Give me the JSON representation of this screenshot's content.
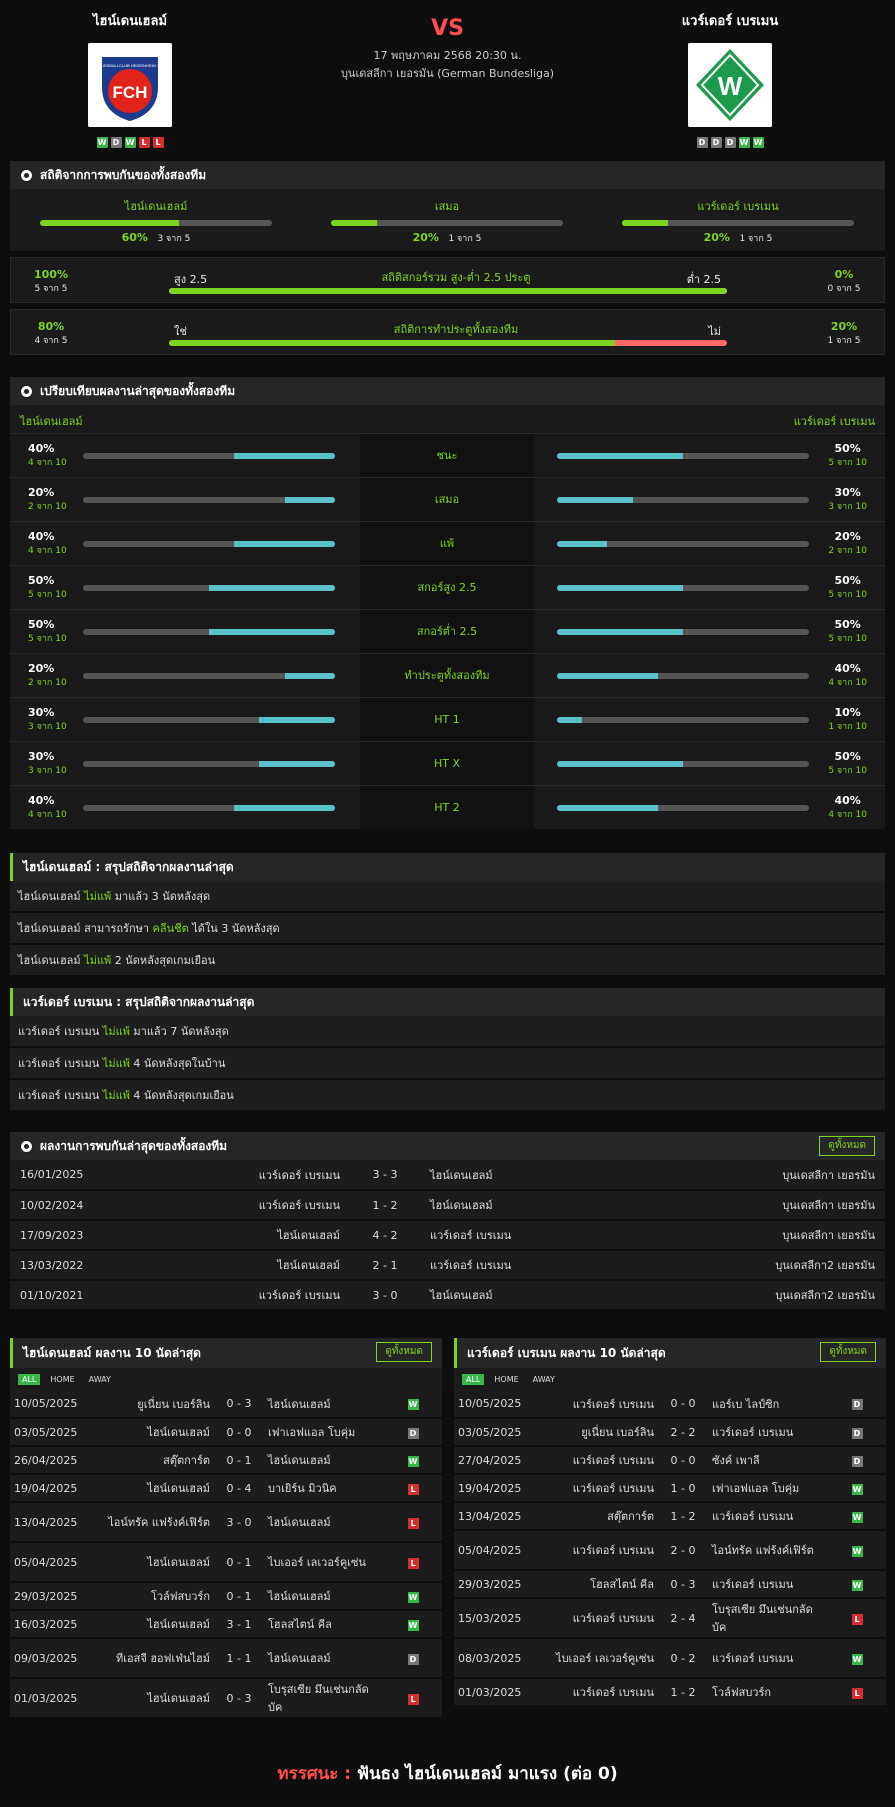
{
  "header": {
    "home_name": "ไฮน์เดนเฮลม์",
    "away_name": "แวร์เดอร์ เบรเมน",
    "vs": "VS",
    "date": "17 พฤษภาคม 2568 20:30 น.",
    "league": "บุนเดสลีกา เยอรมัน (German Bundesliga)",
    "home_form": [
      "W",
      "D",
      "W",
      "L",
      "L"
    ],
    "away_form": [
      "D",
      "D",
      "D",
      "W",
      "W"
    ],
    "home_logo_text": "FCH",
    "home_logo_top": "1. FUSSBALLCLUB HEIDENHEIM 1846",
    "away_logo_text": "W"
  },
  "h2h_stats": {
    "title": "สถิติจากการพบกันของทั้งสองทีม",
    "home": {
      "label": "ไฮน์เดนเฮลม์",
      "pct": "60%",
      "count": "3 จาก 5",
      "value": 60
    },
    "draw": {
      "label": "เสมอ",
      "pct": "20%",
      "count": "1 จาก 5",
      "value": 20
    },
    "away": {
      "label": "แวร์เดอร์ เบรเมน",
      "pct": "20%",
      "count": "1 จาก 5",
      "value": 20
    },
    "ou": {
      "title": "สถิติสกอร์รวม สูง-ต่ำ 2.5 ประตู",
      "left_pct": "100%",
      "left_count": "5 จาก 5",
      "left_label": "สูง 2.5",
      "right_label": "ต่ำ 2.5",
      "right_pct": "0%",
      "right_count": "0 จาก 5",
      "value": 100
    },
    "btts": {
      "title": "สถิติการทำประตูทั้งสองทีม",
      "left_pct": "80%",
      "left_count": "4 จาก 5",
      "left_label": "ใช่",
      "right_label": "ไม่",
      "right_pct": "20%",
      "right_count": "1 จาก 5",
      "value": 80
    }
  },
  "compare": {
    "title": "เปรียบเทียบผลงานล่าสุดของทั้งสองทีม",
    "home_name": "ไฮน์เดนเฮลม์",
    "away_name": "แวร์เดอร์ เบรเมน",
    "rows": [
      {
        "label": "ชนะ",
        "hp": "40%",
        "hc": "4 จาก 10",
        "hv": 40,
        "ap": "50%",
        "ac": "5 จาก 10",
        "av": 50
      },
      {
        "label": "เสมอ",
        "hp": "20%",
        "hc": "2 จาก 10",
        "hv": 20,
        "ap": "30%",
        "ac": "3 จาก 10",
        "av": 30
      },
      {
        "label": "แพ้",
        "hp": "40%",
        "hc": "4 จาก 10",
        "hv": 40,
        "ap": "20%",
        "ac": "2 จาก 10",
        "av": 20
      },
      {
        "label": "สกอร์สูง 2.5",
        "hp": "50%",
        "hc": "5 จาก 10",
        "hv": 50,
        "ap": "50%",
        "ac": "5 จาก 10",
        "av": 50
      },
      {
        "label": "สกอร์ต่ำ 2.5",
        "hp": "50%",
        "hc": "5 จาก 10",
        "hv": 50,
        "ap": "50%",
        "ac": "5 จาก 10",
        "av": 50
      },
      {
        "label": "ทำประตูทั้งสองทีม",
        "hp": "20%",
        "hc": "2 จาก 10",
        "hv": 20,
        "ap": "40%",
        "ac": "4 จาก 10",
        "av": 40
      },
      {
        "label": "HT 1",
        "hp": "30%",
        "hc": "3 จาก 10",
        "hv": 30,
        "ap": "10%",
        "ac": "1 จาก 10",
        "av": 10
      },
      {
        "label": "HT X",
        "hp": "30%",
        "hc": "3 จาก 10",
        "hv": 30,
        "ap": "50%",
        "ac": "5 จาก 10",
        "av": 50
      },
      {
        "label": "HT 2",
        "hp": "40%",
        "hc": "4 จาก 10",
        "hv": 40,
        "ap": "40%",
        "ac": "4 จาก 10",
        "av": 40
      }
    ]
  },
  "home_summary": {
    "title": "ไฮน์เดนเฮลม์ : สรุปสถิติจากผลงานล่าสุด",
    "lines": [
      [
        "ไฮน์เดนเฮลม์ ",
        "ไม่แพ้",
        " มาแล้ว 3 นัดหลังสุด"
      ],
      [
        "ไฮน์เดนเฮลม์ สามารถรักษา ",
        "คลีนชีต",
        " ได้ใน 3 นัดหลังสุด"
      ],
      [
        "ไฮน์เดนเฮลม์ ",
        "ไม่แพ้",
        " 2 นัดหลังสุดเกมเยือน"
      ]
    ]
  },
  "away_summary": {
    "title": "แวร์เดอร์ เบรเมน : สรุปสถิติจากผลงานล่าสุด",
    "lines": [
      [
        "แวร์เดอร์ เบรเมน ",
        "ไม่แพ้",
        " มาแล้ว 7 นัดหลังสุด"
      ],
      [
        "แวร์เดอร์ เบรเมน ",
        "ไม่แพ้",
        " 4 นัดหลังสุดในบ้าน"
      ],
      [
        "แวร์เดอร์ เบรเมน ",
        "ไม่แพ้",
        " 4 นัดหลังสุดเกมเยือน"
      ]
    ]
  },
  "h2h_matches": {
    "title": "ผลงานการพบกันล่าสุดของทั้งสองทีม",
    "see_all": "ดูทั้งหมด",
    "rows": [
      [
        "16/01/2025",
        "แวร์เดอร์ เบรเมน",
        "3 - 3",
        "ไฮน์เดนเฮลม์",
        "บุนเดสลีกา เยอรมัน"
      ],
      [
        "10/02/2024",
        "แวร์เดอร์ เบรเมน",
        "1 - 2",
        "ไฮน์เดนเฮลม์",
        "บุนเดสลีกา เยอรมัน"
      ],
      [
        "17/09/2023",
        "ไฮน์เดนเฮลม์",
        "4 - 2",
        "แวร์เดอร์ เบรเมน",
        "บุนเดสลีกา เยอรมัน"
      ],
      [
        "13/03/2022",
        "ไฮน์เดนเฮลม์",
        "2 - 1",
        "แวร์เดอร์ เบรเมน",
        "บุนเดสลีกา2 เยอรมัน"
      ],
      [
        "01/10/2021",
        "แวร์เดอร์ เบรเมน",
        "3 - 0",
        "ไฮน์เดนเฮลม์",
        "บุนเดสลีกา2 เยอรมัน"
      ]
    ]
  },
  "home_last10": {
    "title": "ไฮน์เดนเฮลม์ ผลงาน 10 นัดล่าสุด",
    "see_all": "ดูทั้งหมด",
    "tabs": [
      "ALL",
      "HOME",
      "AWAY"
    ],
    "rows": [
      [
        "10/05/2025",
        "ยูเนี่ยน เบอร์ลิน",
        "0 - 3",
        "ไฮน์เดนเฮลม์",
        "W"
      ],
      [
        "03/05/2025",
        "ไฮน์เดนเฮลม์",
        "0 - 0",
        "เฟาเอฟแอล โบคุ่ม",
        "D"
      ],
      [
        "26/04/2025",
        "สตุ๊ตการ์ต",
        "0 - 1",
        "ไฮน์เดนเฮลม์",
        "W"
      ],
      [
        "19/04/2025",
        "ไฮน์เดนเฮลม์",
        "0 - 4",
        "บาเยิร์น มิวนิค",
        "L"
      ],
      [
        "13/04/2025",
        "ไอน์ทรัค แฟร้งค์เฟิร์ต",
        "3 - 0",
        "ไฮน์เดนเฮลม์",
        "L"
      ],
      [
        "05/04/2025",
        "ไฮน์เดนเฮลม์",
        "0 - 1",
        "ไบเออร์ เลเวอร์คูเซ่น",
        "L"
      ],
      [
        "29/03/2025",
        "โวล์ฟสบวร์ก",
        "0 - 1",
        "ไฮน์เดนเฮลม์",
        "W"
      ],
      [
        "16/03/2025",
        "ไฮน์เดนเฮลม์",
        "3 - 1",
        "โฮลสไตน์ คีล",
        "W"
      ],
      [
        "09/03/2025",
        "ทีเอสจี ฮอฟเฟ่นไฮม์",
        "1 - 1",
        "ไฮน์เดนเฮลม์",
        "D"
      ],
      [
        "01/03/2025",
        "ไฮน์เดนเฮลม์",
        "0 - 3",
        "โบรุสเซีย มึนเช่นกลัดบัค",
        "L"
      ]
    ]
  },
  "away_last10": {
    "title": "แวร์เดอร์ เบรเมน ผลงาน 10 นัดล่าสุด",
    "see_all": "ดูทั้งหมด",
    "tabs": [
      "ALL",
      "HOME",
      "AWAY"
    ],
    "rows": [
      [
        "10/05/2025",
        "แวร์เดอร์ เบรเมน",
        "0 - 0",
        "แอร์เบ ไลป์ซิก",
        "D"
      ],
      [
        "03/05/2025",
        "ยูเนี่ยน เบอร์ลิน",
        "2 - 2",
        "แวร์เดอร์ เบรเมน",
        "D"
      ],
      [
        "27/04/2025",
        "แวร์เดอร์ เบรเมน",
        "0 - 0",
        "ซังค์ เพาลี",
        "D"
      ],
      [
        "19/04/2025",
        "แวร์เดอร์ เบรเมน",
        "1 - 0",
        "เฟาเอฟแอล โบคุ่ม",
        "W"
      ],
      [
        "13/04/2025",
        "สตุ๊ตการ์ต",
        "1 - 2",
        "แวร์เดอร์ เบรเมน",
        "W"
      ],
      [
        "05/04/2025",
        "แวร์เดอร์ เบรเมน",
        "2 - 0",
        "ไอน์ทรัค แฟร้งค์เฟิร์ต",
        "W"
      ],
      [
        "29/03/2025",
        "โฮลสไตน์ คีล",
        "0 - 3",
        "แวร์เดอร์ เบรเมน",
        "W"
      ],
      [
        "15/03/2025",
        "แวร์เดอร์ เบรเมน",
        "2 - 4",
        "โบรุสเซีย มึนเช่นกลัดบัค",
        "L"
      ],
      [
        "08/03/2025",
        "ไบเออร์ เลเวอร์คูเซ่น",
        "0 - 2",
        "แวร์เดอร์ เบรเมน",
        "W"
      ],
      [
        "01/03/2025",
        "แวร์เดอร์ เบรเมน",
        "1 - 2",
        "โวล์ฟสบวร์ก",
        "L"
      ]
    ]
  },
  "footer": {
    "label": "ทรรศนะ : ",
    "pick": "ฟันธง ไฮน์เดนเฮลม์ มาแรง (ต่อ 0)"
  },
  "colors": {
    "accent": "#7ed321",
    "bar_teal": "#5bc0c8",
    "win": "#39b54a",
    "draw": "#777777",
    "loss": "#d32f2f",
    "vs": "#ff4d4d"
  }
}
